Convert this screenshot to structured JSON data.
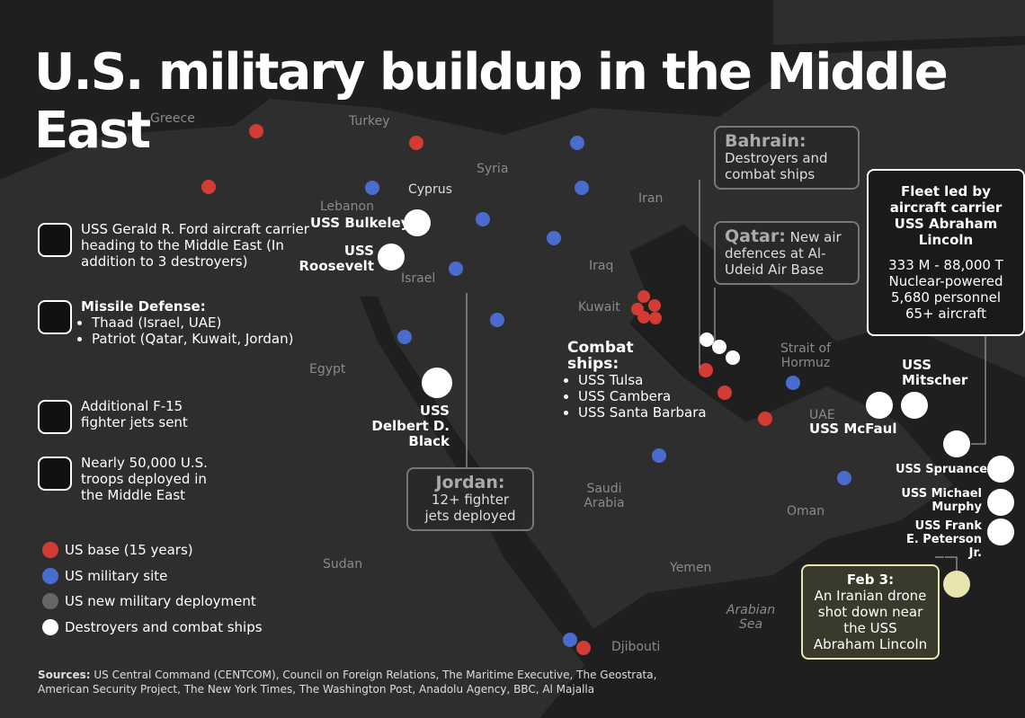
{
  "title": "U.S. military buildup in the Middle East",
  "places": [
    "Greece",
    "Turkey",
    "Syria",
    "Cyprus",
    "Lebanon",
    "Iran",
    "Iraq",
    "Israel",
    "Kuwait",
    "Egypt",
    "Saudi Arabia",
    "Sudan",
    "Yemen",
    "Oman",
    "UAE",
    "Strait of Hormuz",
    "Arabian Sea",
    "Djibouti"
  ],
  "ships": [
    "USS Bulkeley",
    "USS Roosevelt",
    "USS Delbert D. Black",
    "USS McFaul",
    "USS Mitscher",
    "USS Spruance",
    "USS Michael Murphy",
    "USS Frank E. Peterson Jr."
  ],
  "callouts": {
    "bahrain": {
      "title": "Bahrain:",
      "text": "Destroyers and combat ships"
    },
    "qatar": {
      "title": "Qatar:",
      "text": "New air defences at Al-Udeid Air Base"
    },
    "jordan": {
      "title": "Jordan:",
      "text": "12+ fighter jets deployed"
    },
    "fleet": {
      "title": "Fleet led by aircraft carrier USS Abraham Lincoln",
      "lines": [
        "333 M - 88,000 T",
        "Nuclear-powered",
        "5,680 personnel",
        "65+ aircraft"
      ]
    },
    "feb3": {
      "title": "Feb 3:",
      "text": "An Iranian drone shot down near the USS Abraham Lincoln"
    },
    "combat": {
      "title": "Combat ships:",
      "items": [
        "USS Tulsa",
        "USS Cambera",
        "USS Santa Barbara"
      ]
    }
  },
  "key": {
    "carrier": "USS Gerald R. Ford aircraft carrier heading to the Middle East (In addition to 3 destroyers)",
    "missile": {
      "title": "Missile Defense:",
      "items": [
        "Thaad (Israel, UAE)",
        "Patriot (Qatar, Kuwait, Jordan)"
      ]
    },
    "jets": "Additional F-15 fighter jets sent",
    "troops": "Nearly 50,000 U.S. troops deployed in the Middle East"
  },
  "legend": [
    "US base (15 years)",
    "US military site",
    "US new military deployment",
    "Destroyers and combat ships"
  ],
  "sources": {
    "label": "Sources:",
    "text": "US Central Command (CENTCOM), Council on Foreign Relations, The Maritime Executive, The Geostrata, American Security Project, The New York Times, The Washington Post, Anadolu Agency, BBC, Al Majalla"
  }
}
